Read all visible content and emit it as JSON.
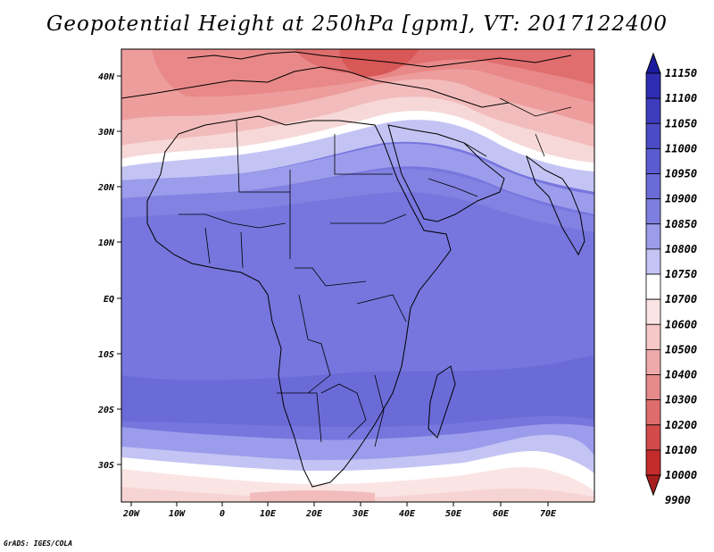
{
  "title": "Geopotential Height at 250hPa [gpm], VT: 2017122400",
  "credit": "GrADS: IGES/COLA",
  "lat_labels": [
    "40N",
    "30N",
    "20N",
    "10N",
    "EQ",
    "10S",
    "20S",
    "30S"
  ],
  "lon_labels": [
    "20W",
    "10W",
    "0",
    "10E",
    "20E",
    "30E",
    "40E",
    "50E",
    "60E",
    "70E"
  ],
  "colorbar": {
    "levels": [
      "11150",
      "11100",
      "11050",
      "11000",
      "10950",
      "10900",
      "10850",
      "10800",
      "10750",
      "10700",
      "10600",
      "10500",
      "10400",
      "10300",
      "10200",
      "10100",
      "10000",
      "9900"
    ],
    "colors": [
      "#1c1a9e",
      "#2e2cb0",
      "#3d3cbc",
      "#4b4bc6",
      "#5b5bd0",
      "#6b6bd8",
      "#7e7ee0",
      "#9c9ceb",
      "#c3c3f4",
      "#ffffff",
      "#fbe4e4",
      "#f6c8c8",
      "#eeaaaa",
      "#e68a8a",
      "#de6c6c",
      "#d24a4a",
      "#c42c2c",
      "#a81e1e"
    ]
  }
}
